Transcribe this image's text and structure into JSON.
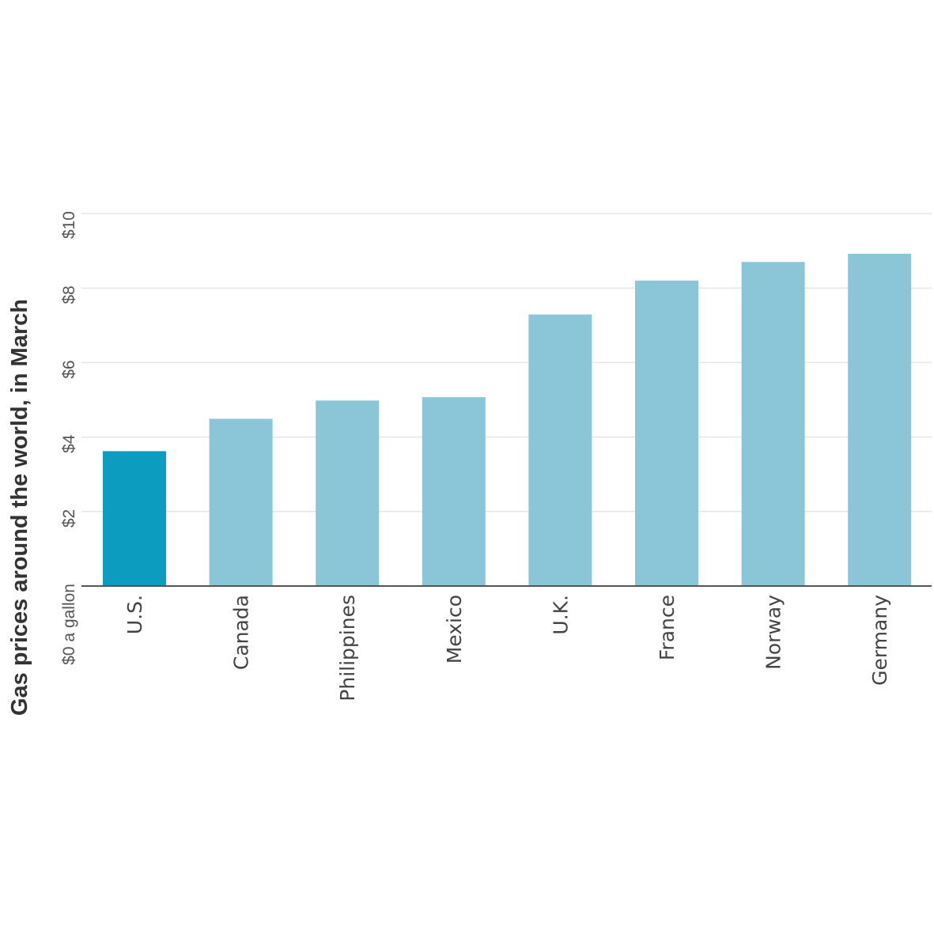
{
  "chart_data": {
    "type": "bar",
    "title": "Gas prices around the world, in March",
    "categories": [
      "U.S.",
      "Canada",
      "Philippines",
      "Mexico",
      "U.K.",
      "France",
      "Norway",
      "Germany"
    ],
    "values": [
      3.62,
      4.49,
      4.98,
      5.07,
      7.29,
      8.2,
      8.7,
      8.92
    ],
    "ylim": [
      0,
      10
    ],
    "yticks": [
      0,
      2,
      4,
      6,
      8,
      10
    ],
    "ytick_labels": [
      "$0 a gallon",
      "$2",
      "$4",
      "$6",
      "$8",
      "$10"
    ],
    "grid": true,
    "colors": {
      "highlight": "#0b9cbf",
      "default": "#8bc6d8"
    },
    "highlight_index": 0
  }
}
